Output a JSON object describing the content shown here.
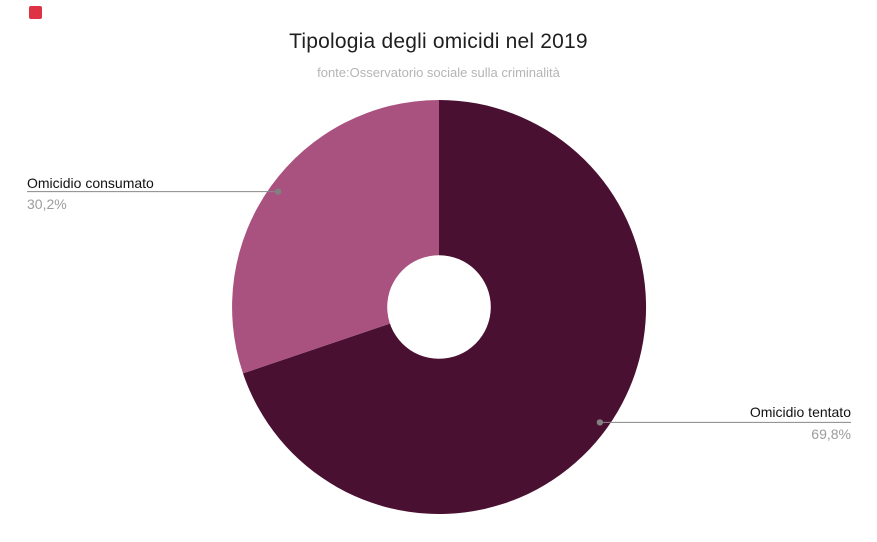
{
  "chart_data": {
    "type": "pie",
    "donut": true,
    "title": "Tipologia degli omicidi nel 2019",
    "subtitle": "fonte:Osservatorio sociale sulla criminalità",
    "unit": "%",
    "direction": "clockwise",
    "start_angle_deg": 0,
    "hole_ratio": 0.25,
    "legend_position": "outside-callout-labels",
    "slices": [
      {
        "label": "Omicidio tentato",
        "value": 69.8,
        "display": "69,8%",
        "color": "#4a1031",
        "callout_side": "right"
      },
      {
        "label": "Omicidio consumato",
        "value": 30.2,
        "display": "30,2%",
        "color": "#a9517f",
        "callout_side": "left"
      }
    ]
  },
  "styles": {
    "background": "#ffffff",
    "title_color": "#1f1f1f",
    "subtitle_color": "#b5b5b5",
    "label_color": "#121212",
    "value_color": "#9c9c9c",
    "callout_line_color": "#888888",
    "callout_dot_color": "#818181",
    "marker_color": "#dd3344"
  }
}
